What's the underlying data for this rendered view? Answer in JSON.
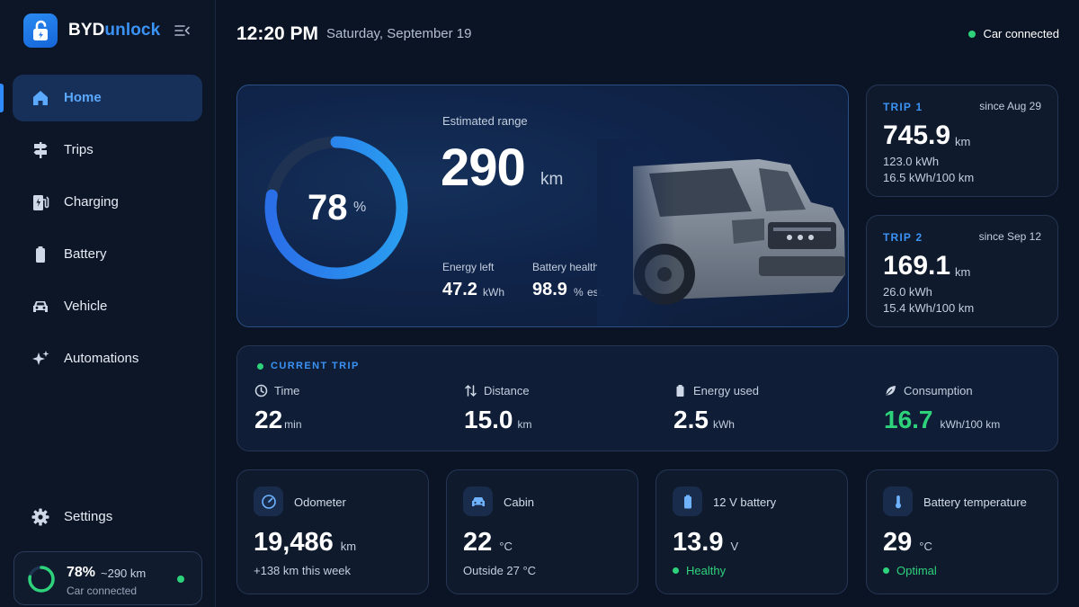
{
  "brand": {
    "name_part1": "BYD",
    "name_part2": "unlock"
  },
  "sidebar": {
    "items": [
      {
        "label": "Home",
        "icon": "home-icon"
      },
      {
        "label": "Trips",
        "icon": "signpost-icon"
      },
      {
        "label": "Charging",
        "icon": "charging-station-icon"
      },
      {
        "label": "Battery",
        "icon": "battery-icon"
      },
      {
        "label": "Vehicle",
        "icon": "car-icon"
      },
      {
        "label": "Automations",
        "icon": "sparkles-icon"
      }
    ],
    "settings_label": "Settings",
    "status": {
      "percent": "78%",
      "range": "~290 km",
      "subtitle": "Car connected",
      "level": 0.78
    }
  },
  "header": {
    "time": "12:20 PM",
    "date": "Saturday, September 19",
    "connection": "Car connected"
  },
  "hero": {
    "percent": "78",
    "percent_unit": "%",
    "level": 0.78,
    "range_label": "Estimated range",
    "range_value": "290",
    "range_unit": "km",
    "energy_left_label": "Energy left",
    "energy_left_value": "47.2",
    "energy_left_unit": "kWh",
    "health_label": "Battery health",
    "health_value": "98.9",
    "health_unit": "%",
    "health_suffix": "est."
  },
  "trips": [
    {
      "label": "TRIP 1",
      "since": "since Aug 29",
      "distance": "745.9",
      "unit": "km",
      "energy": "123.0 kWh",
      "consumption": "16.5 kWh/100 km"
    },
    {
      "label": "TRIP 2",
      "since": "since Sep 12",
      "distance": "169.1",
      "unit": "km",
      "energy": "26.0 kWh",
      "consumption": "15.4 kWh/100 km"
    }
  ],
  "current_trip": {
    "title": "CURRENT TRIP",
    "time_label": "Time",
    "time_value": "22",
    "time_unit": "min",
    "distance_label": "Distance",
    "distance_value": "15.0",
    "distance_unit": "km",
    "energy_label": "Energy used",
    "energy_value": "2.5",
    "energy_unit": "kWh",
    "consumption_label": "Consumption",
    "consumption_value": "16.7",
    "consumption_unit": "kWh/100 km"
  },
  "tiles": [
    {
      "title": "Odometer",
      "value": "19,486",
      "unit": "km",
      "sub": "+138 km this week"
    },
    {
      "title": "Cabin",
      "value": "22",
      "unit": "°C",
      "sub": "Outside 27 °C"
    },
    {
      "title": "12 V battery",
      "value": "13.9",
      "unit": "V",
      "sub": "Healthy"
    },
    {
      "title": "Battery temperature",
      "value": "29",
      "unit": "°C",
      "sub": "Optimal"
    }
  ],
  "colors": {
    "accent": "#3a93f5",
    "positive": "#2ed27a",
    "background": "#0b1424",
    "active_nav": "#17305a"
  }
}
